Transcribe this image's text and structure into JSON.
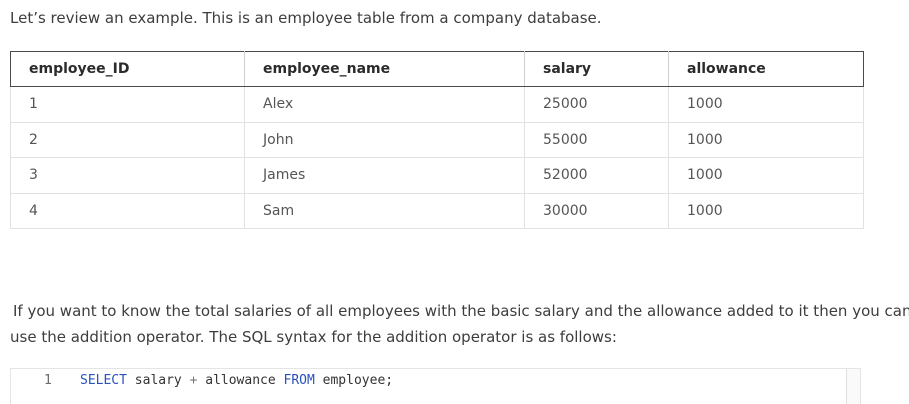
{
  "intro": "Let’s review an example. This is an employee table from a company database.",
  "table": {
    "headers": [
      "employee_ID",
      "employee_name",
      "salary",
      "allowance"
    ],
    "rows": [
      [
        "1",
        "Alex",
        "25000",
        "1000"
      ],
      [
        "2",
        "John",
        "55000",
        "1000"
      ],
      [
        "3",
        "James",
        "52000",
        "1000"
      ],
      [
        "4",
        "Sam",
        "30000",
        "1000"
      ]
    ]
  },
  "paragraph": {
    "line1": "If you want to know the total salaries of all employees with the basic salary and the allowance added to it then you can",
    "line2": "use the addition operator. The SQL syntax for the addition operator is as follows:"
  },
  "code": {
    "line_number": "1",
    "tokens": {
      "select": "SELECT",
      "col1": " salary ",
      "plus": "+",
      "col2": " allowance ",
      "from": "FROM",
      "table": " employee;"
    }
  }
}
